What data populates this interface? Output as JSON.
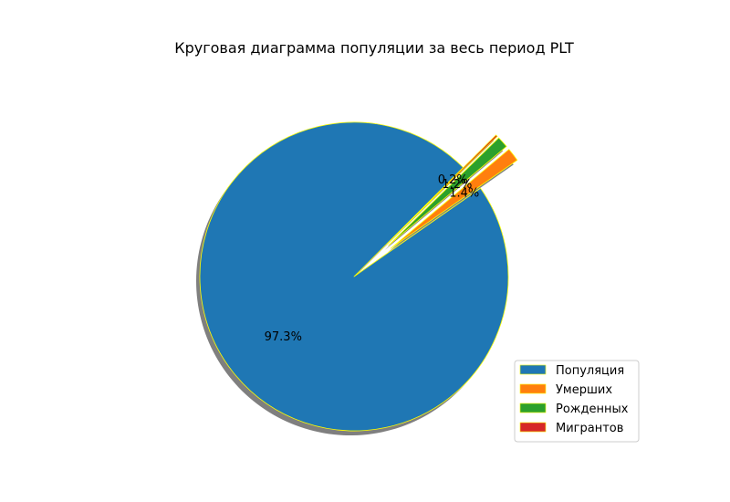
{
  "chart_data": {
    "type": "pie",
    "title": "Круговая диаграмма популяции за весь период PLT",
    "slices": [
      {
        "label": "Популяция",
        "value": 97.3,
        "pct_label": "97.3%",
        "color": "#1f77b4",
        "exploded": false
      },
      {
        "label": "Умерших",
        "value": 1.4,
        "pct_label": "1.4%",
        "color": "#ff7f0e",
        "exploded": true
      },
      {
        "label": "Рожденных",
        "value": 1.2,
        "pct_label": "1.2%",
        "color": "#2ca02c",
        "exploded": true
      },
      {
        "label": "Мигрантов",
        "value": 0.2,
        "pct_label": "0.2%",
        "color": "#d62728",
        "exploded": true
      }
    ],
    "edge_color": "#ffff00",
    "shadow": true,
    "legend_position": "lower-right"
  }
}
